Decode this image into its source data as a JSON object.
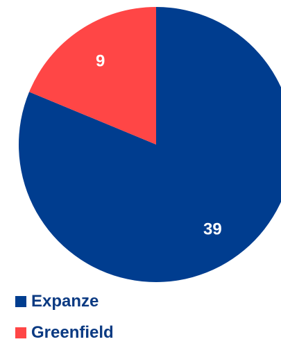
{
  "chart_data": {
    "type": "pie",
    "categories": [
      "Expanze",
      "Greenfield"
    ],
    "values": [
      39,
      9
    ],
    "labels": [
      "39",
      "9"
    ],
    "colors": [
      "#003d8f",
      "#ff4646"
    ],
    "start_angle_deg": 0,
    "direction": "clockwise",
    "legend_position": "bottom-left"
  },
  "legend": {
    "items": [
      {
        "label": "Expanze",
        "color": "#003d8f"
      },
      {
        "label": "Greenfield",
        "color": "#ff4646"
      }
    ]
  }
}
